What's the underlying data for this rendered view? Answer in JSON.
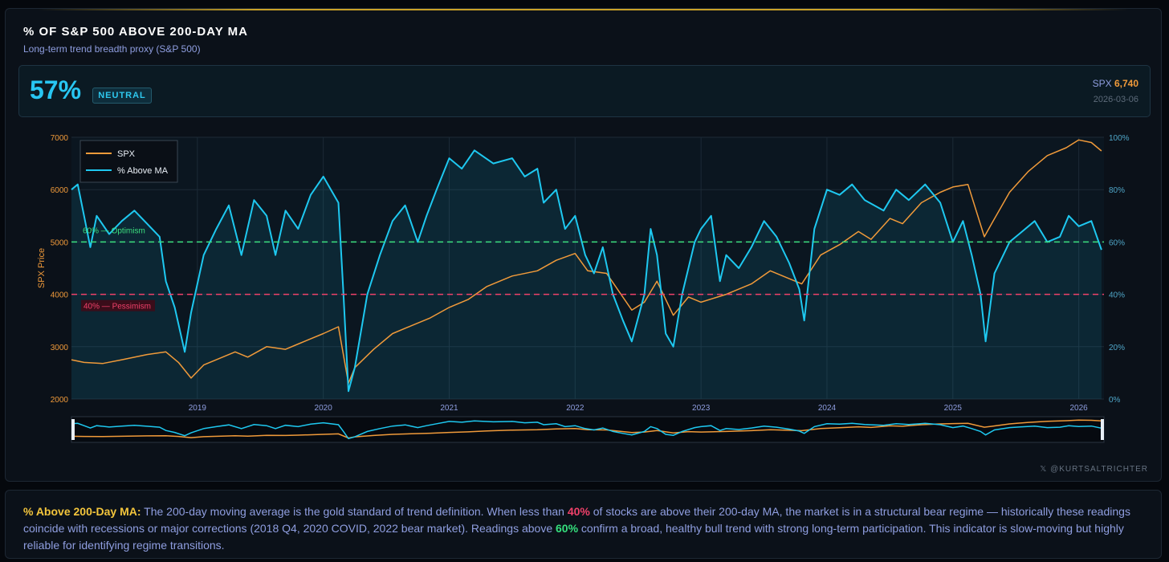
{
  "header": {
    "title": "% OF S&P 500 ABOVE 200-DAY MA",
    "subtitle": "Long-term trend breadth proxy (S&P 500)"
  },
  "stat": {
    "value": "57%",
    "badge": "NEUTRAL",
    "spx_label": "SPX",
    "spx_value": "6,740",
    "date": "2026-03-06"
  },
  "credit": "@KURTSALTRICHTER",
  "footer": {
    "lead": "% Above 200-Day MA:",
    "t1": " The 200-day moving average is the gold standard of trend definition. When less than ",
    "v40": "40%",
    "t2": " of stocks are above their 200-day MA, the market is in a structural bear regime — historically these readings coincide with recessions or major corrections (2018 Q4, 2020 COVID, 2022 bear market). Readings above ",
    "v60": "60%",
    "t3": " confirm a broad, healthy bull trend with strong long-term participation. This indicator is slow-moving but highly reliable for identifying regime transitions."
  },
  "colors": {
    "spx": "#f09a3a",
    "pct": "#1ec8f0",
    "optimism": "#3ce07f",
    "pessimism": "#f0416a"
  },
  "chart_data": {
    "type": "line",
    "ylabel": "SPX Price",
    "ylim_left": [
      2000,
      7000
    ],
    "ylim_right": [
      0,
      100
    ],
    "left_ticks": [
      "2000",
      "3000",
      "4000",
      "5000",
      "6000",
      "7000"
    ],
    "right_ticks": [
      "0%",
      "20%",
      "40%",
      "60%",
      "80%",
      "100%"
    ],
    "x_ticks": [
      "2019",
      "2020",
      "2021",
      "2022",
      "2023",
      "2024",
      "2025",
      "2026"
    ],
    "legend": [
      "SPX",
      "% Above MA"
    ],
    "legend_position": "top-left",
    "thresholds": [
      {
        "label": "60% — Optimism",
        "value": 60
      },
      {
        "label": "40% — Pessimism",
        "value": 40
      }
    ],
    "x_range": [
      2018.0,
      2026.2
    ],
    "series": [
      {
        "name": "SPX",
        "axis": "left",
        "points": [
          [
            2018.0,
            2750
          ],
          [
            2018.1,
            2700
          ],
          [
            2018.25,
            2680
          ],
          [
            2018.4,
            2750
          ],
          [
            2018.6,
            2850
          ],
          [
            2018.75,
            2900
          ],
          [
            2018.85,
            2700
          ],
          [
            2018.95,
            2400
          ],
          [
            2019.05,
            2650
          ],
          [
            2019.3,
            2900
          ],
          [
            2019.4,
            2800
          ],
          [
            2019.55,
            3000
          ],
          [
            2019.7,
            2950
          ],
          [
            2019.8,
            3050
          ],
          [
            2020.0,
            3250
          ],
          [
            2020.12,
            3380
          ],
          [
            2020.2,
            2300
          ],
          [
            2020.25,
            2600
          ],
          [
            2020.4,
            2950
          ],
          [
            2020.55,
            3250
          ],
          [
            2020.7,
            3400
          ],
          [
            2020.85,
            3550
          ],
          [
            2021.0,
            3750
          ],
          [
            2021.15,
            3900
          ],
          [
            2021.3,
            4150
          ],
          [
            2021.5,
            4350
          ],
          [
            2021.7,
            4450
          ],
          [
            2021.85,
            4650
          ],
          [
            2022.0,
            4780
          ],
          [
            2022.1,
            4450
          ],
          [
            2022.25,
            4400
          ],
          [
            2022.45,
            3700
          ],
          [
            2022.55,
            3850
          ],
          [
            2022.65,
            4250
          ],
          [
            2022.78,
            3600
          ],
          [
            2022.9,
            3950
          ],
          [
            2023.0,
            3850
          ],
          [
            2023.2,
            4000
          ],
          [
            2023.4,
            4200
          ],
          [
            2023.55,
            4450
          ],
          [
            2023.8,
            4200
          ],
          [
            2023.95,
            4750
          ],
          [
            2024.1,
            4950
          ],
          [
            2024.25,
            5200
          ],
          [
            2024.35,
            5050
          ],
          [
            2024.5,
            5450
          ],
          [
            2024.6,
            5350
          ],
          [
            2024.75,
            5750
          ],
          [
            2024.9,
            5950
          ],
          [
            2025.0,
            6050
          ],
          [
            2025.12,
            6100
          ],
          [
            2025.25,
            5100
          ],
          [
            2025.32,
            5400
          ],
          [
            2025.45,
            5950
          ],
          [
            2025.6,
            6350
          ],
          [
            2025.75,
            6650
          ],
          [
            2025.9,
            6800
          ],
          [
            2026.0,
            6950
          ],
          [
            2026.1,
            6900
          ],
          [
            2026.18,
            6740
          ]
        ]
      },
      {
        "name": "% Above MA",
        "axis": "right",
        "points": [
          [
            2018.0,
            80
          ],
          [
            2018.05,
            82
          ],
          [
            2018.1,
            70
          ],
          [
            2018.15,
            58
          ],
          [
            2018.2,
            70
          ],
          [
            2018.3,
            63
          ],
          [
            2018.4,
            68
          ],
          [
            2018.5,
            72
          ],
          [
            2018.6,
            67
          ],
          [
            2018.7,
            62
          ],
          [
            2018.75,
            45
          ],
          [
            2018.82,
            35
          ],
          [
            2018.9,
            18
          ],
          [
            2018.95,
            33
          ],
          [
            2019.05,
            55
          ],
          [
            2019.15,
            65
          ],
          [
            2019.25,
            74
          ],
          [
            2019.35,
            55
          ],
          [
            2019.45,
            76
          ],
          [
            2019.55,
            70
          ],
          [
            2019.62,
            55
          ],
          [
            2019.7,
            72
          ],
          [
            2019.8,
            65
          ],
          [
            2019.9,
            78
          ],
          [
            2020.0,
            85
          ],
          [
            2020.12,
            75
          ],
          [
            2020.16,
            40
          ],
          [
            2020.2,
            3
          ],
          [
            2020.25,
            12
          ],
          [
            2020.35,
            40
          ],
          [
            2020.45,
            55
          ],
          [
            2020.55,
            68
          ],
          [
            2020.65,
            74
          ],
          [
            2020.75,
            60
          ],
          [
            2020.82,
            70
          ],
          [
            2020.9,
            80
          ],
          [
            2021.0,
            92
          ],
          [
            2021.1,
            88
          ],
          [
            2021.2,
            95
          ],
          [
            2021.35,
            90
          ],
          [
            2021.5,
            92
          ],
          [
            2021.6,
            85
          ],
          [
            2021.7,
            88
          ],
          [
            2021.75,
            75
          ],
          [
            2021.85,
            80
          ],
          [
            2021.92,
            65
          ],
          [
            2022.0,
            70
          ],
          [
            2022.08,
            55
          ],
          [
            2022.15,
            48
          ],
          [
            2022.22,
            58
          ],
          [
            2022.3,
            40
          ],
          [
            2022.38,
            30
          ],
          [
            2022.45,
            22
          ],
          [
            2022.55,
            40
          ],
          [
            2022.6,
            65
          ],
          [
            2022.65,
            55
          ],
          [
            2022.72,
            25
          ],
          [
            2022.78,
            20
          ],
          [
            2022.85,
            40
          ],
          [
            2022.95,
            60
          ],
          [
            2023.0,
            65
          ],
          [
            2023.08,
            70
          ],
          [
            2023.15,
            45
          ],
          [
            2023.2,
            55
          ],
          [
            2023.3,
            50
          ],
          [
            2023.4,
            58
          ],
          [
            2023.5,
            68
          ],
          [
            2023.6,
            62
          ],
          [
            2023.7,
            52
          ],
          [
            2023.78,
            42
          ],
          [
            2023.82,
            30
          ],
          [
            2023.9,
            65
          ],
          [
            2024.0,
            80
          ],
          [
            2024.1,
            78
          ],
          [
            2024.2,
            82
          ],
          [
            2024.3,
            76
          ],
          [
            2024.45,
            72
          ],
          [
            2024.55,
            80
          ],
          [
            2024.65,
            76
          ],
          [
            2024.78,
            82
          ],
          [
            2024.9,
            75
          ],
          [
            2025.0,
            60
          ],
          [
            2025.08,
            68
          ],
          [
            2025.15,
            55
          ],
          [
            2025.22,
            40
          ],
          [
            2025.26,
            22
          ],
          [
            2025.33,
            48
          ],
          [
            2025.45,
            60
          ],
          [
            2025.55,
            64
          ],
          [
            2025.65,
            68
          ],
          [
            2025.75,
            60
          ],
          [
            2025.85,
            62
          ],
          [
            2025.92,
            70
          ],
          [
            2026.0,
            66
          ],
          [
            2026.1,
            68
          ],
          [
            2026.18,
            57
          ]
        ]
      }
    ]
  }
}
